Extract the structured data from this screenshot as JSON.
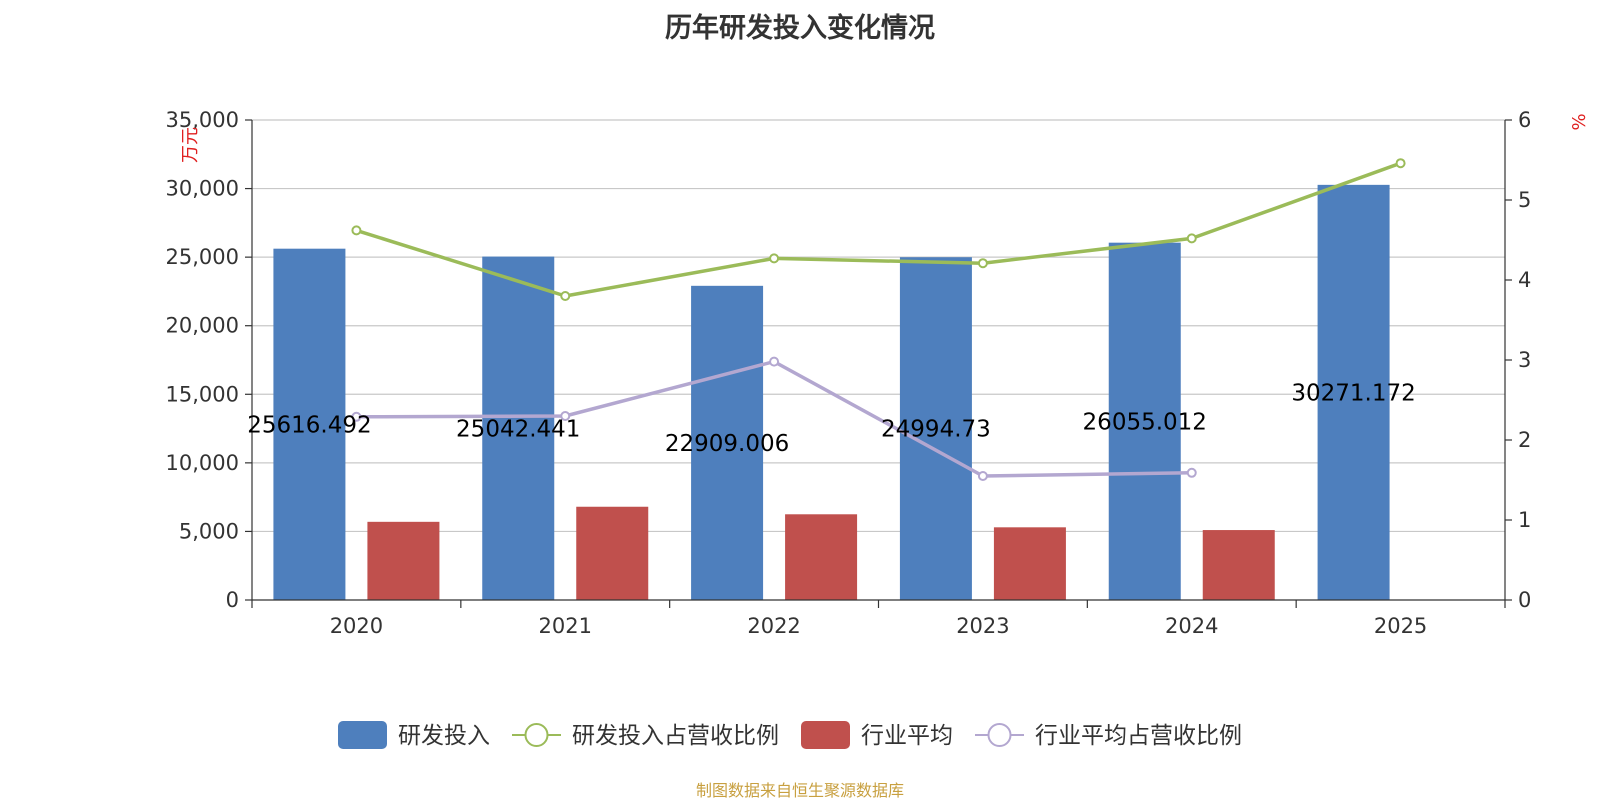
{
  "chart_data": {
    "type": "bar",
    "title": "历年研发投入变化情况",
    "categories": [
      "2020",
      "2021",
      "2022",
      "2023",
      "2024",
      "2025"
    ],
    "y_left": {
      "unit": "万元",
      "range": [
        0,
        35000
      ],
      "ticks": [
        "0",
        "5,000",
        "10,000",
        "15,000",
        "20,000",
        "25,000",
        "30,000",
        "35,000"
      ]
    },
    "y_right": {
      "unit": "%",
      "range": [
        0,
        6
      ],
      "ticks": [
        "0",
        "1",
        "2",
        "3",
        "4",
        "5",
        "6"
      ]
    },
    "grid": true,
    "legend_position": "bottom",
    "series": [
      {
        "name": "研发投入",
        "type": "bar",
        "axis": "left",
        "color": "#4e7fbd",
        "values": [
          25616.492,
          25042.441,
          22909.006,
          24994.73,
          26055.012,
          30271.172
        ],
        "labels": [
          "25616.492",
          "25042.441",
          "22909.006",
          "24994.73",
          "26055.012",
          "30271.172"
        ]
      },
      {
        "name": "研发投入占营收比例",
        "type": "line",
        "axis": "right",
        "color": "#9bbb59",
        "values": [
          4.62,
          3.8,
          4.27,
          4.21,
          4.52,
          5.46
        ]
      },
      {
        "name": "行业平均",
        "type": "bar",
        "axis": "left",
        "color": "#c0504d",
        "values": [
          5700,
          6800,
          6250,
          5300,
          5100,
          null
        ]
      },
      {
        "name": "行业平均占营收比例",
        "type": "line",
        "axis": "right",
        "color": "#b3a7d0",
        "values": [
          2.29,
          2.3,
          2.98,
          1.55,
          1.59,
          null
        ]
      }
    ]
  },
  "source_note": "制图数据来自恒生聚源数据库"
}
